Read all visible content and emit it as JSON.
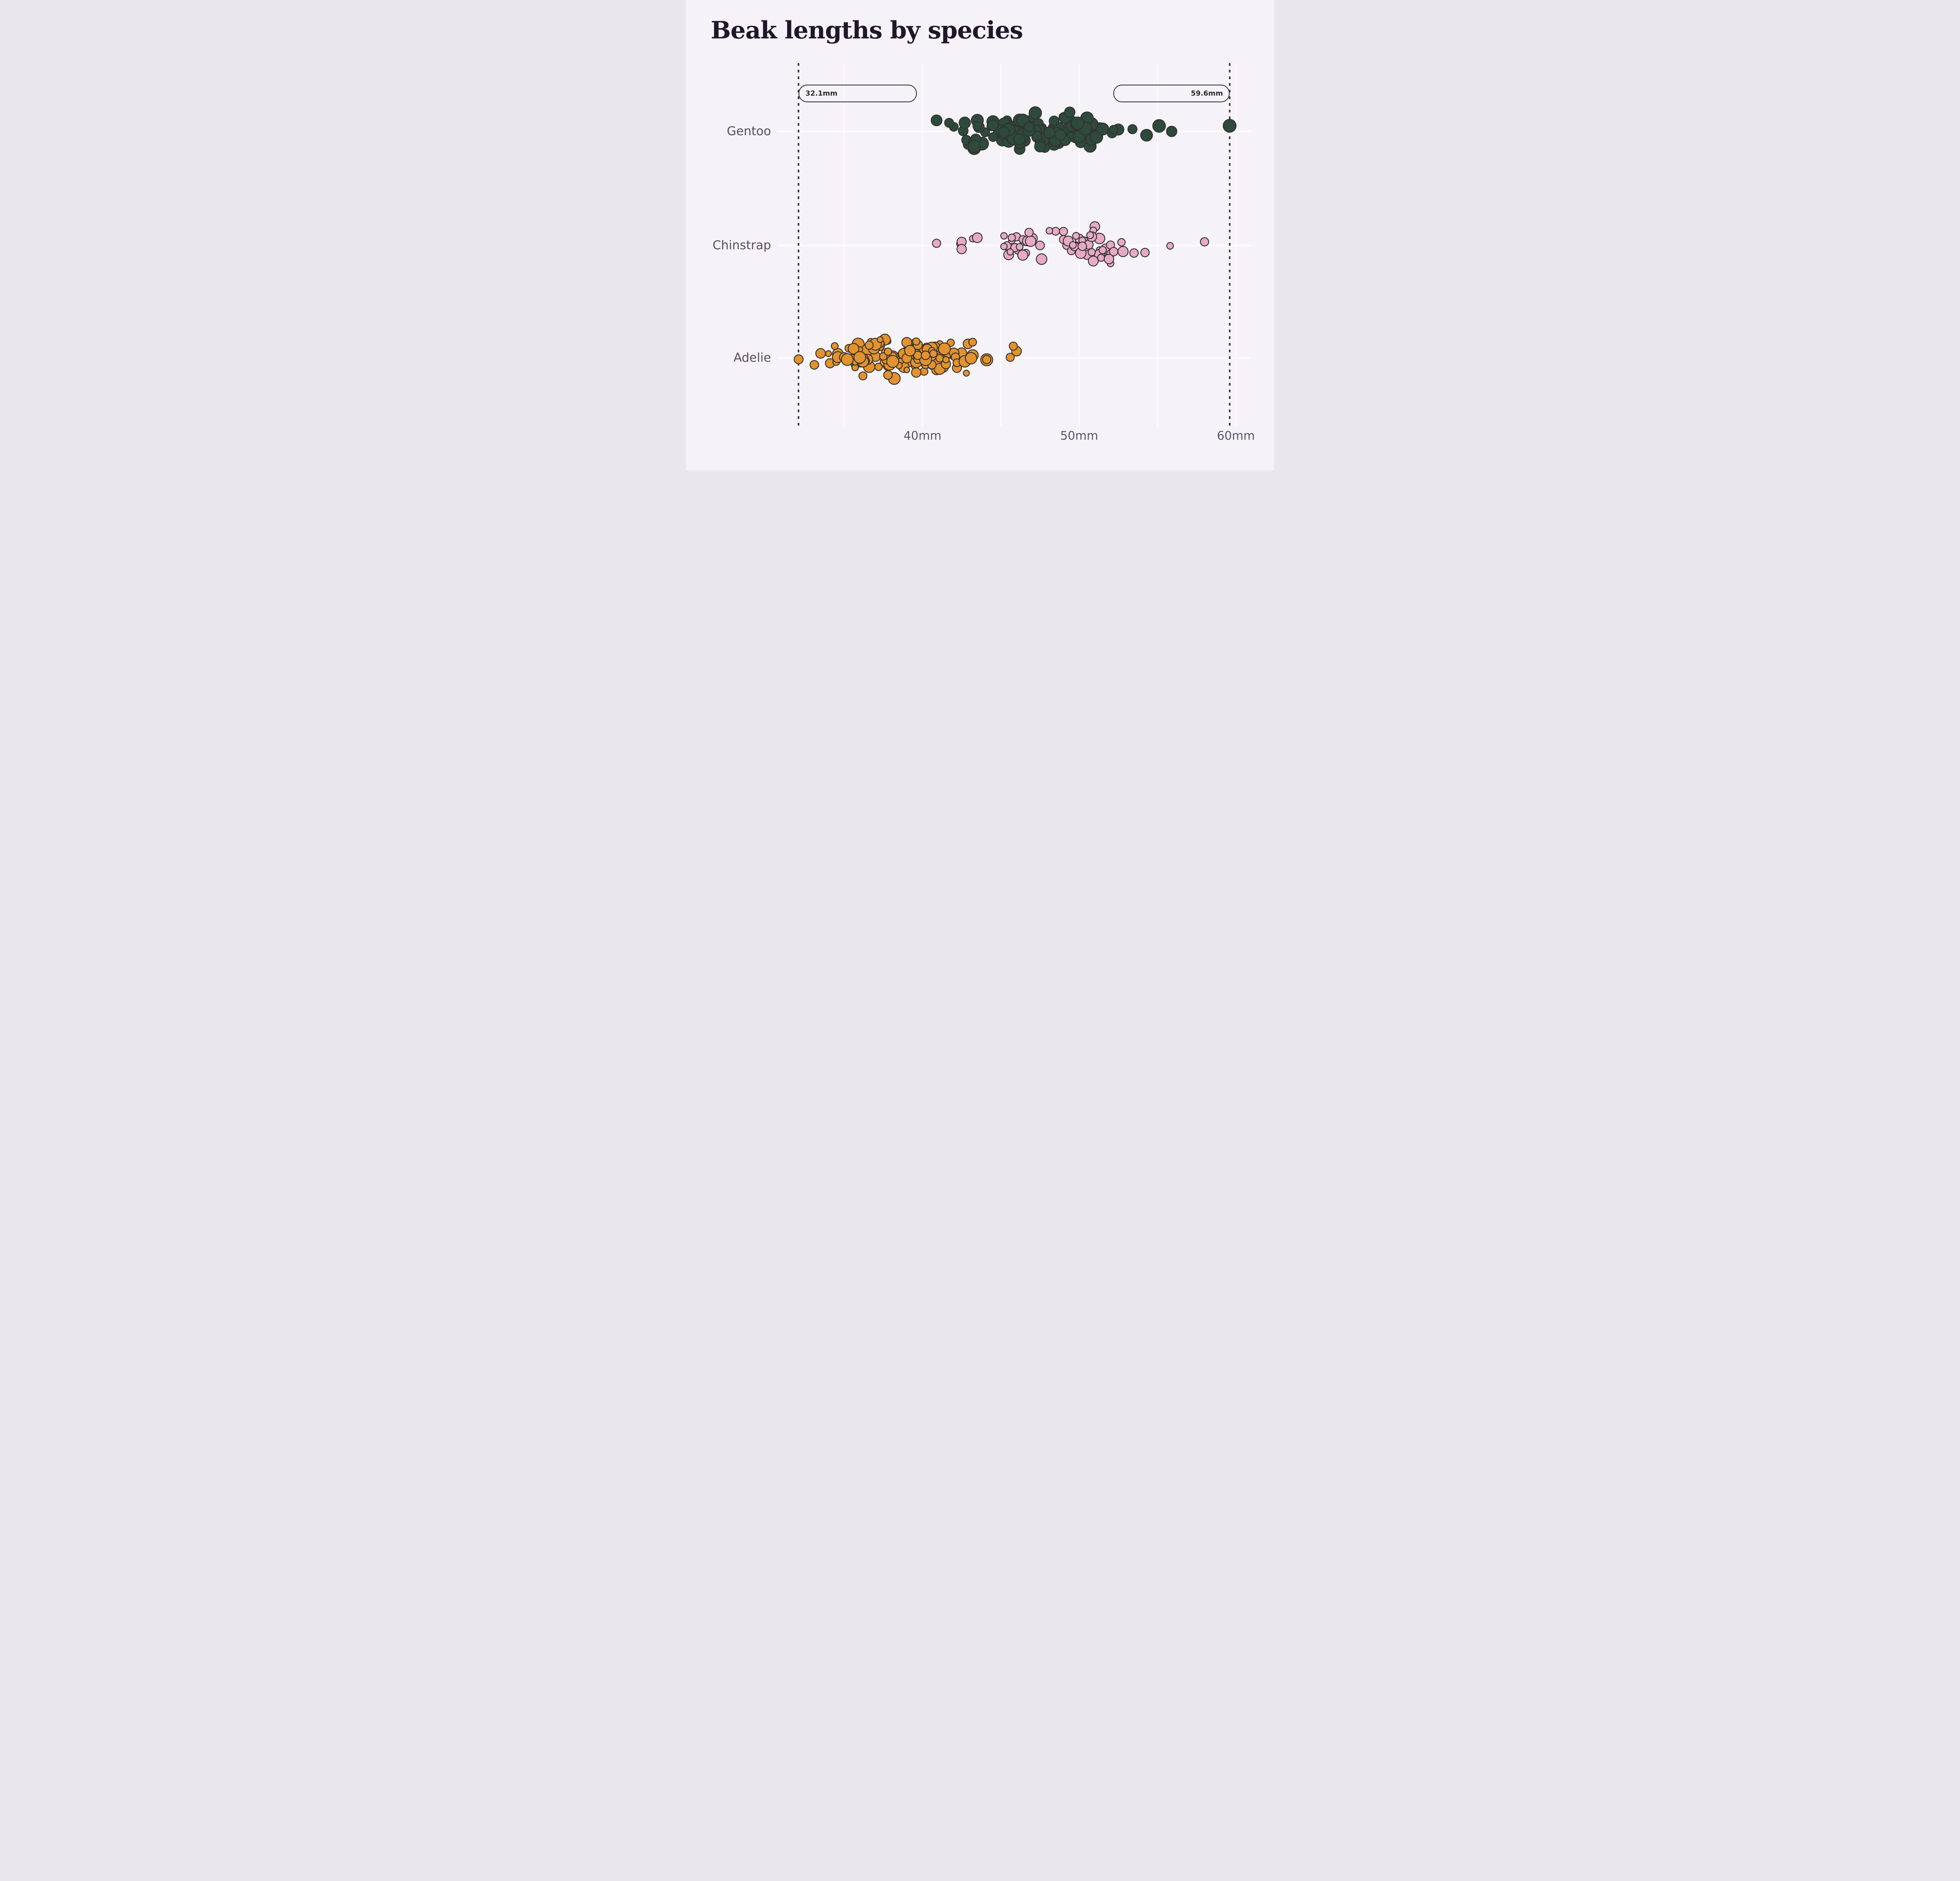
{
  "chart_data": {
    "type": "scatter",
    "subtype": "strip-beeswarm",
    "title": "Beak lengths by species",
    "xlabel": "",
    "ylabel": "",
    "x_unit": "mm",
    "xlim": [
      30.7,
      61.0
    ],
    "grid": true,
    "categories": [
      "Gentoo",
      "Chinstrap",
      "Adelie"
    ],
    "x_ticks": [
      {
        "value": 40,
        "label": "40mm"
      },
      {
        "value": 50,
        "label": "50mm"
      },
      {
        "value": 60,
        "label": "60mm"
      }
    ],
    "x_gridlines_mm": [
      35,
      40,
      45,
      50,
      55,
      60
    ],
    "reference_lines": [
      {
        "label": "32.1mm",
        "value": 32.1,
        "label_align": "left"
      },
      {
        "label": "59.6mm",
        "value": 59.6,
        "label_align": "right"
      }
    ],
    "jitter_seed": 20,
    "series": [
      {
        "name": "Gentoo",
        "color": "#2d4a3c",
        "values_mm": [
          46.1,
          50,
          48.7,
          50,
          47.6,
          46.5,
          45.4,
          46.7,
          43.3,
          46.8,
          40.9,
          49,
          45.5,
          48.4,
          45.8,
          49.3,
          42,
          49.2,
          46.2,
          48.7,
          50.2,
          45.1,
          46.5,
          46.3,
          42.9,
          46.1,
          44.5,
          47.8,
          48.2,
          50,
          47.3,
          42.8,
          45.1,
          59.6,
          49.1,
          48.4,
          42.6,
          44.4,
          44,
          48.7,
          42.7,
          49.6,
          45.3,
          49.6,
          50.5,
          43.6,
          45.5,
          50.5,
          44.9,
          45.2,
          46.6,
          48.5,
          45.1,
          50.1,
          46.5,
          45,
          43.8,
          45.5,
          43.2,
          50.4,
          45.3,
          46.2,
          45.7,
          54.3,
          45.8,
          49.8,
          46.2,
          49.5,
          43.5,
          50.7,
          47.7,
          46.4,
          48.2,
          46.5,
          46.4,
          48.6,
          47.5,
          51.1,
          45.2,
          45.2,
          49.1,
          52.5,
          47.4,
          50,
          44.9,
          50.8,
          43.4,
          51.3,
          47.5,
          52.1,
          47.5,
          52.2,
          45.5,
          49.5,
          44.5,
          50.8,
          49.4,
          46.9,
          48.4,
          51.1,
          48.5,
          55.9,
          47.2,
          49.1,
          47.3,
          46.8,
          41.7,
          53.4,
          43.3,
          48.1,
          50.5,
          49.8,
          43.5,
          51.5,
          46.2,
          55.1,
          44.5,
          48.8,
          47.2,
          46.8,
          50.4,
          45.2,
          49.9
        ]
      },
      {
        "name": "Chinstrap",
        "color": "#e7aac6",
        "values_mm": [
          46.5,
          50,
          51.3,
          45.4,
          52.7,
          45.2,
          46.1,
          51.3,
          46,
          51.3,
          46.6,
          51.7,
          47,
          52,
          45.9,
          50.5,
          50.3,
          58,
          46.4,
          49.2,
          42.4,
          48.5,
          43.2,
          50.6,
          46.7,
          52,
          50.5,
          49.5,
          46.4,
          52.8,
          40.9,
          54.2,
          42.5,
          51,
          49.7,
          47.5,
          47.6,
          52,
          46.9,
          53.5,
          49,
          46.2,
          50.9,
          45.5,
          50.9,
          50.8,
          50.1,
          49,
          51.5,
          49.8,
          48.1,
          51.4,
          45.7,
          50.7,
          42.5,
          52.2,
          45.2,
          49.3,
          50.2,
          45.6,
          51.9,
          46.8,
          45.7,
          55.8,
          43.5,
          49.6,
          50.8,
          50.2
        ]
      },
      {
        "name": "Adelie",
        "color": "#e2922e",
        "values_mm": [
          39.1,
          39.5,
          40.3,
          36.7,
          39.3,
          38.9,
          39.2,
          34.1,
          42,
          37.8,
          37.8,
          41.1,
          38.6,
          34.6,
          36.6,
          38.7,
          42.5,
          34.4,
          46,
          37.8,
          37.7,
          35.9,
          38.2,
          38.8,
          35.3,
          40.6,
          40.5,
          37.9,
          40.5,
          39.5,
          37.2,
          39.5,
          40.9,
          36.4,
          39.2,
          38.8,
          42.2,
          37.6,
          39.8,
          36.5,
          40.8,
          36,
          44.1,
          37,
          39.6,
          41.1,
          37.5,
          36,
          42.3,
          39.6,
          40.1,
          35,
          42,
          34.5,
          41.4,
          39,
          40.6,
          36.5,
          37.6,
          35.7,
          41.3,
          37.6,
          41.1,
          36.4,
          41.6,
          35.5,
          41.1,
          35.9,
          41.8,
          33.5,
          39.7,
          39.6,
          45.8,
          35.5,
          42.8,
          40.9,
          37.2,
          36.2,
          42.1,
          34.6,
          42.9,
          36.7,
          35.1,
          37.3,
          41.3,
          36.3,
          36.9,
          38.3,
          38.9,
          35.7,
          41.1,
          34,
          39.6,
          36.2,
          40.8,
          38.1,
          40.3,
          33.1,
          43.2,
          35,
          41,
          37.7,
          37.8,
          37.9,
          39.7,
          38.6,
          38.2,
          38.1,
          43.2,
          38.1,
          45.6,
          39.7,
          42.2,
          39.6,
          42.7,
          38.6,
          37.3,
          35.7,
          41.1,
          36.2,
          37.7,
          40.2,
          41.4,
          35.2,
          40.6,
          38.8,
          41.5,
          39,
          44.1,
          38.5,
          43.1,
          36.8,
          37.5,
          38.1,
          41.1,
          35.6,
          40.2,
          37,
          39.7,
          40.2,
          40.6,
          32.1,
          40.7,
          37.3,
          39,
          39.2,
          36.6,
          36,
          37.8,
          36,
          41.5
        ]
      }
    ]
  },
  "colors": {
    "background": "#f6f3f8",
    "gridline": "#ffffff",
    "title_text": "#201729",
    "category_label": "#564e5e",
    "tick_label": "#5d5466",
    "annotation_text": "#2b2a28",
    "annotation_border": "#2b2a28",
    "reference_line": "#3b3937",
    "dot_stroke": "#33312d"
  }
}
